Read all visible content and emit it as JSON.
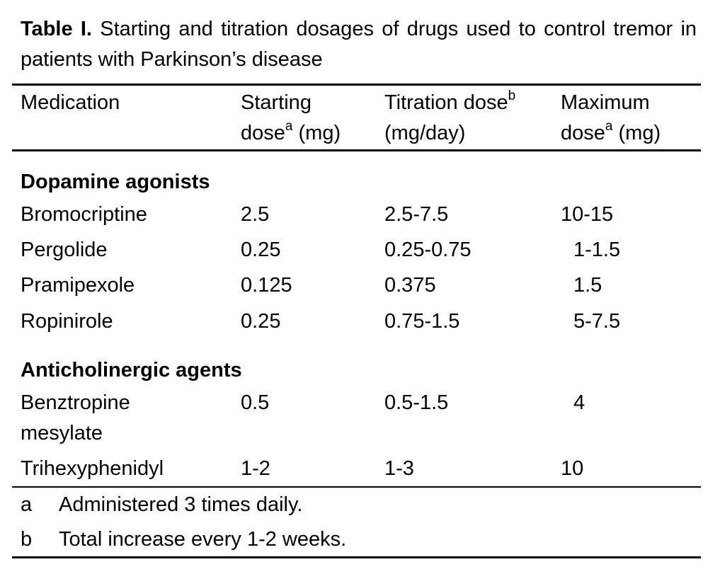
{
  "caption": {
    "label": "Table I.",
    "text": "Starting and titration dosages of drugs used to control tremor in patients with Parkinson’s disease"
  },
  "header": {
    "medication": "Medication",
    "starting_line1": "Starting",
    "starting_line2": "dose",
    "starting_sup": "a",
    "starting_unit": " (mg)",
    "titration_line1": "Titration dose",
    "titration_sup": "b",
    "titration_line2": "(mg/day)",
    "maximum_line1": "Maximum",
    "maximum_line2": "dose",
    "maximum_sup": "a",
    "maximum_unit": " (mg)"
  },
  "sections": [
    {
      "title": "Dopamine agonists",
      "rows": [
        {
          "medication": "Bromocriptine",
          "starting": "2.5",
          "titration": "2.5-7.5",
          "maximum": "10-15"
        },
        {
          "medication": "Pergolide",
          "starting": "0.25",
          "titration": "0.25-0.75",
          "maximum": "1-1.5"
        },
        {
          "medication": "Pramipexole",
          "starting": "0.125",
          "titration": "0.375",
          "maximum": "1.5"
        },
        {
          "medication": "Ropinirole",
          "starting": "0.25",
          "titration": "0.75-1.5",
          "maximum": "5-7.5"
        }
      ]
    },
    {
      "title": "Anticholinergic agents",
      "rows": [
        {
          "medication_line1": "Benztropine",
          "medication_line2": "mesylate",
          "starting": "0.5",
          "titration": "0.5-1.5",
          "maximum": "4"
        },
        {
          "medication": "Trihexyphenidyl",
          "starting": "1-2",
          "titration": "1-3",
          "maximum": "10"
        }
      ]
    }
  ],
  "footnotes": [
    {
      "mark": "a",
      "text": "Administered 3 times daily."
    },
    {
      "mark": "b",
      "text": "Total increase every 1-2 weeks."
    }
  ]
}
